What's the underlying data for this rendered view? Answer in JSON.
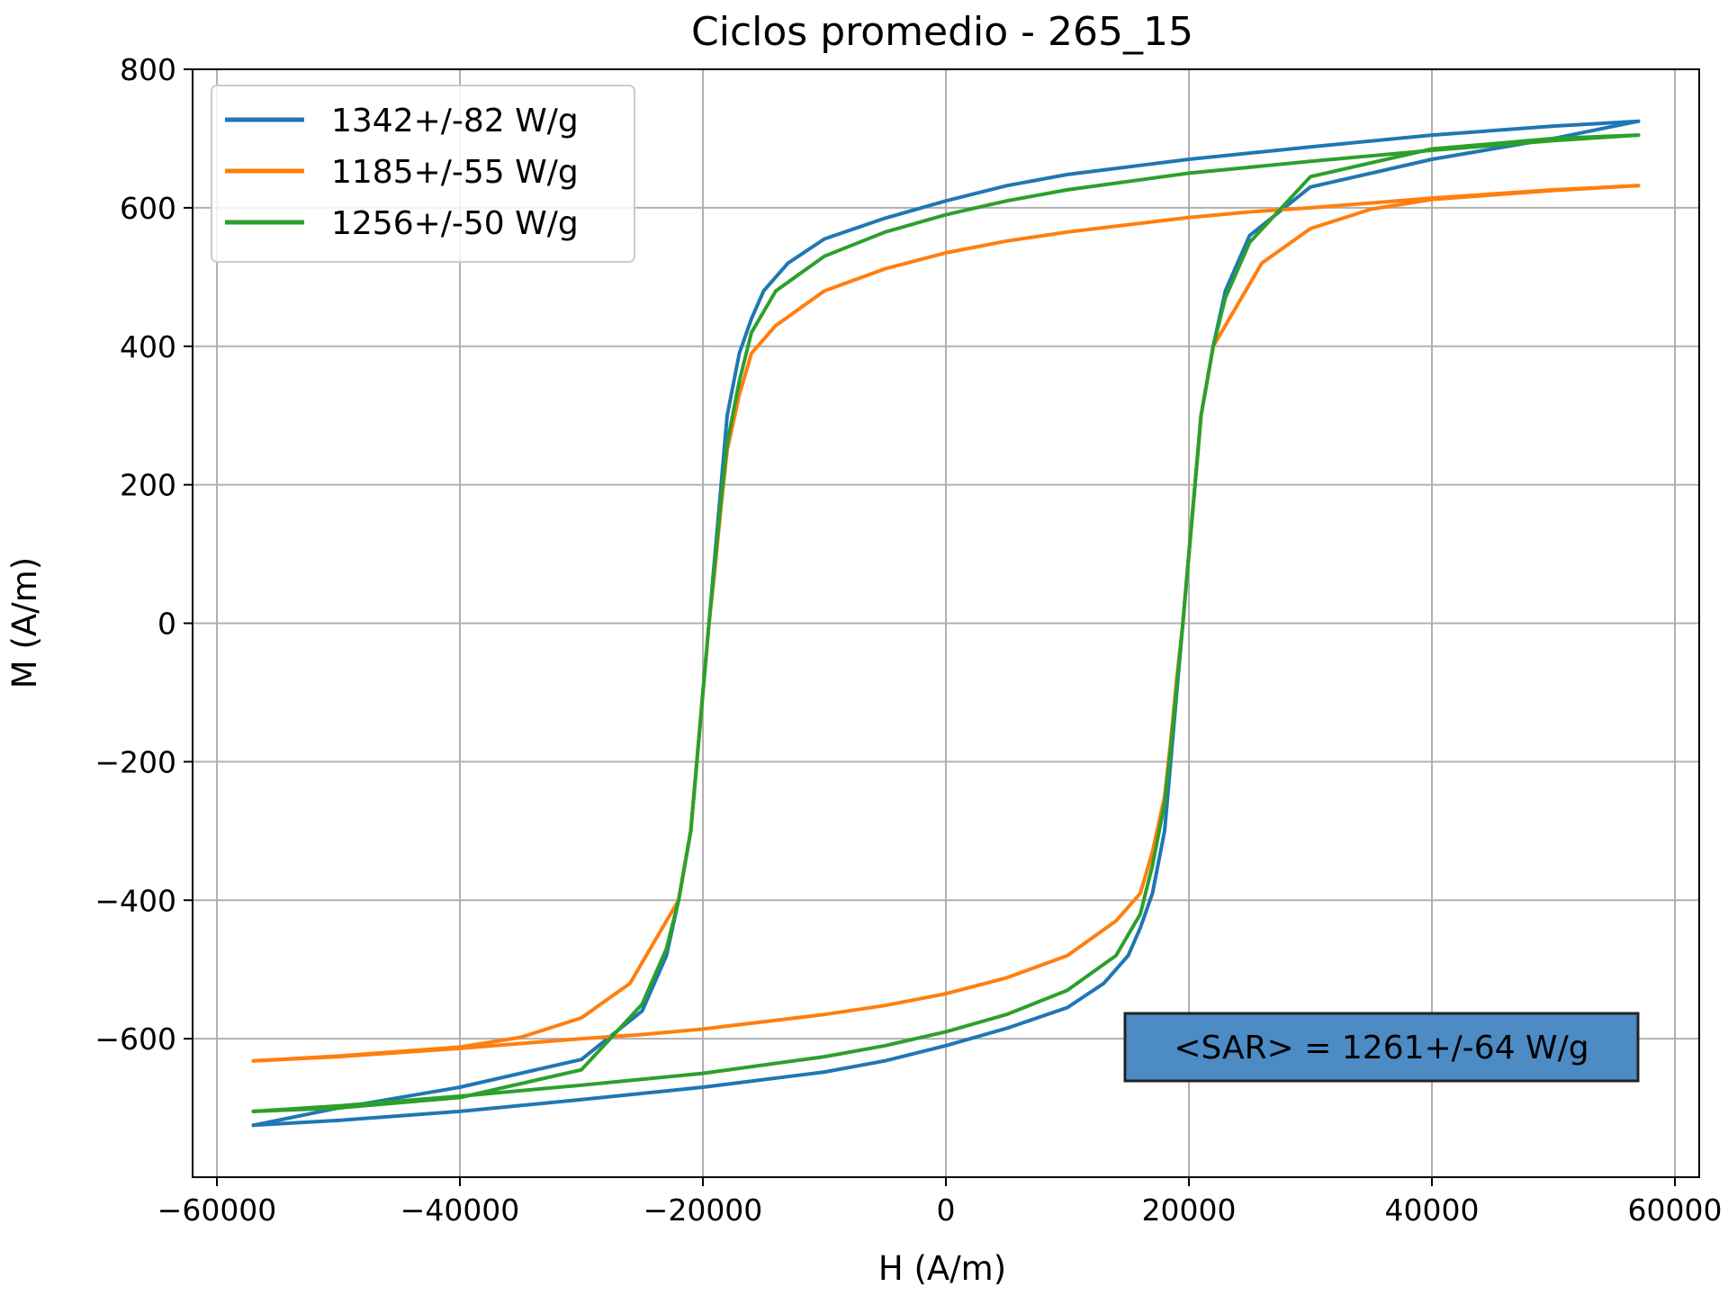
{
  "chart_data": {
    "type": "line",
    "title": "Ciclos promedio - 265_15",
    "xlabel": "H (A/m)",
    "ylabel": "M (A/m)",
    "xlim": [
      -62000,
      62000
    ],
    "ylim": [
      -800,
      800
    ],
    "xticks": [
      -60000,
      -40000,
      -20000,
      0,
      20000,
      40000,
      60000
    ],
    "xtick_labels": [
      "−60000",
      "−40000",
      "−20000",
      "0",
      "20000",
      "40000",
      "60000"
    ],
    "yticks": [
      -600,
      -400,
      -200,
      0,
      200,
      400,
      600,
      800
    ],
    "ytick_labels": [
      "−600",
      "−400",
      "−200",
      "0",
      "200",
      "400",
      "600",
      "800"
    ],
    "grid": true,
    "legend_position": "top-left",
    "series": [
      {
        "name": "1342+/-82 W/g",
        "color": "#1f77b4",
        "upper_branch": {
          "x": [
            57000,
            50000,
            40000,
            30000,
            20000,
            10000,
            5000,
            0,
            -5000,
            -10000,
            -13000,
            -15000,
            -16000,
            -17000,
            -18000,
            -18500,
            -19000,
            -19500,
            -20000,
            -20500,
            -21000,
            -22000,
            -23000,
            -25000,
            -30000,
            -40000,
            -50000,
            -57000
          ],
          "y": [
            725,
            718,
            705,
            688,
            670,
            648,
            632,
            610,
            585,
            555,
            520,
            480,
            440,
            390,
            300,
            200,
            100,
            0,
            -100,
            -200,
            -300,
            -400,
            -480,
            -560,
            -630,
            -670,
            -700,
            -725
          ]
        },
        "lower_branch": {
          "x": [
            -57000,
            -50000,
            -40000,
            -30000,
            -20000,
            -10000,
            -5000,
            0,
            5000,
            10000,
            13000,
            15000,
            16000,
            17000,
            18000,
            18500,
            19000,
            19500,
            20000,
            20500,
            21000,
            22000,
            23000,
            25000,
            30000,
            40000,
            50000,
            57000
          ],
          "y": [
            -725,
            -718,
            -705,
            -688,
            -670,
            -648,
            -632,
            -610,
            -585,
            -555,
            -520,
            -480,
            -440,
            -390,
            -300,
            -200,
            -100,
            0,
            100,
            200,
            300,
            400,
            480,
            560,
            630,
            670,
            700,
            725
          ]
        }
      },
      {
        "name": "1185+/-55 W/g",
        "color": "#ff7f0e",
        "upper_branch": {
          "x": [
            57000,
            50000,
            40000,
            30000,
            25000,
            20000,
            10000,
            5000,
            0,
            -5000,
            -10000,
            -14000,
            -16000,
            -17000,
            -18000,
            -18500,
            -19000,
            -19500,
            -20000,
            -20500,
            -21000,
            -22000,
            -24000,
            -26000,
            -30000,
            -35000,
            -40000,
            -50000,
            -57000
          ],
          "y": [
            632,
            626,
            614,
            600,
            594,
            586,
            565,
            552,
            535,
            512,
            480,
            430,
            390,
            330,
            250,
            170,
            80,
            0,
            -100,
            -200,
            -300,
            -400,
            -460,
            -520,
            -570,
            -598,
            -612,
            -625,
            -632
          ]
        },
        "lower_branch": {
          "x": [
            -57000,
            -50000,
            -40000,
            -30000,
            -25000,
            -20000,
            -10000,
            -5000,
            0,
            5000,
            10000,
            14000,
            16000,
            17000,
            18000,
            18500,
            19000,
            19500,
            20000,
            20500,
            21000,
            22000,
            24000,
            26000,
            30000,
            35000,
            40000,
            50000,
            57000
          ],
          "y": [
            -632,
            -626,
            -614,
            -600,
            -594,
            -586,
            -565,
            -552,
            -535,
            -512,
            -480,
            -430,
            -390,
            -330,
            -250,
            -170,
            -80,
            0,
            100,
            200,
            300,
            400,
            460,
            520,
            570,
            598,
            612,
            625,
            632
          ]
        }
      },
      {
        "name": "1256+/-50 W/g",
        "color": "#2ca02c",
        "upper_branch": {
          "x": [
            57000,
            50000,
            40000,
            30000,
            20000,
            10000,
            5000,
            0,
            -5000,
            -10000,
            -14000,
            -16000,
            -17000,
            -18000,
            -18500,
            -19000,
            -19500,
            -20000,
            -20500,
            -21000,
            -22000,
            -23000,
            -25000,
            -30000,
            -40000,
            -50000,
            -57000
          ],
          "y": [
            705,
            697,
            683,
            667,
            650,
            626,
            610,
            590,
            565,
            530,
            480,
            420,
            350,
            260,
            180,
            90,
            0,
            -100,
            -200,
            -300,
            -400,
            -470,
            -550,
            -645,
            -685,
            -700,
            -705
          ]
        },
        "lower_branch": {
          "x": [
            -57000,
            -50000,
            -40000,
            -30000,
            -20000,
            -10000,
            -5000,
            0,
            5000,
            10000,
            14000,
            16000,
            17000,
            18000,
            18500,
            19000,
            19500,
            20000,
            20500,
            21000,
            22000,
            23000,
            25000,
            30000,
            40000,
            50000,
            57000
          ],
          "y": [
            -705,
            -697,
            -683,
            -667,
            -650,
            -626,
            -610,
            -590,
            -565,
            -530,
            -480,
            -420,
            -350,
            -260,
            -180,
            -90,
            0,
            100,
            200,
            300,
            400,
            470,
            550,
            645,
            685,
            700,
            705
          ]
        }
      }
    ],
    "annotation": {
      "text": "<SAR> = 1261+/-64 W/g",
      "box_color": "#4c8bc4",
      "position": "bottom-right"
    }
  }
}
